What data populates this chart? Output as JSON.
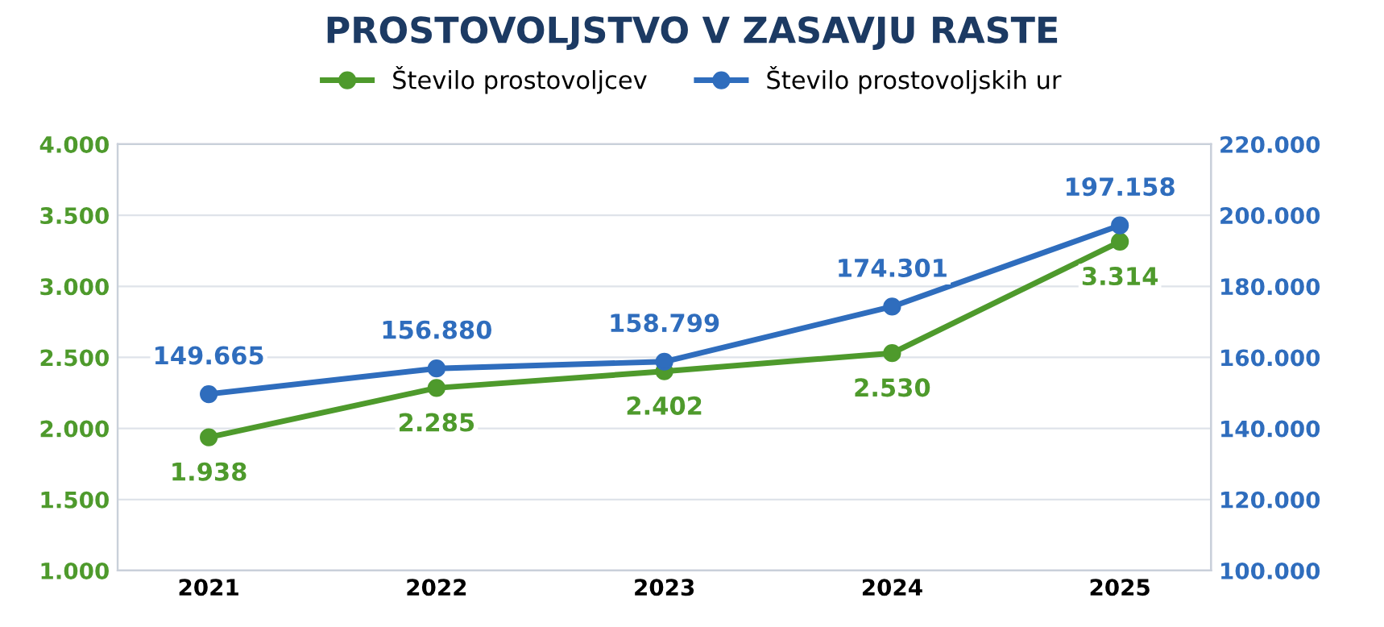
{
  "chart_data": {
    "type": "line",
    "title": "PROSTOVOLJSTVO V ZASAVJU RASTE",
    "categories": [
      "2021",
      "2022",
      "2023",
      "2024",
      "2025"
    ],
    "series": [
      {
        "name": "Število prostovoljcev",
        "color": "#4e9a2c",
        "values": [
          1938,
          2285,
          2402,
          2530,
          3314
        ],
        "value_labels": [
          "1.938",
          "2.285",
          "2.402",
          "2.530",
          "3.314"
        ]
      },
      {
        "name": "Število prostovoljskih ur",
        "color": "#2f6dbd",
        "axis": "y2",
        "values": [
          149665,
          156880,
          158799,
          174301,
          197158
        ],
        "value_labels": [
          "149.665",
          "156.880",
          "158.799",
          "174.301",
          "197.158"
        ]
      }
    ],
    "ylim": [
      1000,
      4000
    ],
    "yticks": [
      {
        "value": 1000,
        "label": "1.000"
      },
      {
        "value": 1500,
        "label": "1.500"
      },
      {
        "value": 2000,
        "label": "2.000"
      },
      {
        "value": 2500,
        "label": "2.500"
      },
      {
        "value": 3000,
        "label": "3.000"
      },
      {
        "value": 3500,
        "label": "3.500"
      },
      {
        "value": 4000,
        "label": "4.000"
      }
    ],
    "y2lim": [
      100000,
      220000
    ],
    "y2ticks": [
      {
        "value": 100000,
        "label": "100.000"
      },
      {
        "value": 120000,
        "label": "120.000"
      },
      {
        "value": 140000,
        "label": "140.000"
      },
      {
        "value": 160000,
        "label": "160.000"
      },
      {
        "value": 180000,
        "label": "180.000"
      },
      {
        "value": 200000,
        "label": "200.000"
      },
      {
        "value": 220000,
        "label": "220.000"
      }
    ],
    "grid": "y",
    "legend": "top",
    "marker": "circle",
    "line_style": "solid"
  }
}
